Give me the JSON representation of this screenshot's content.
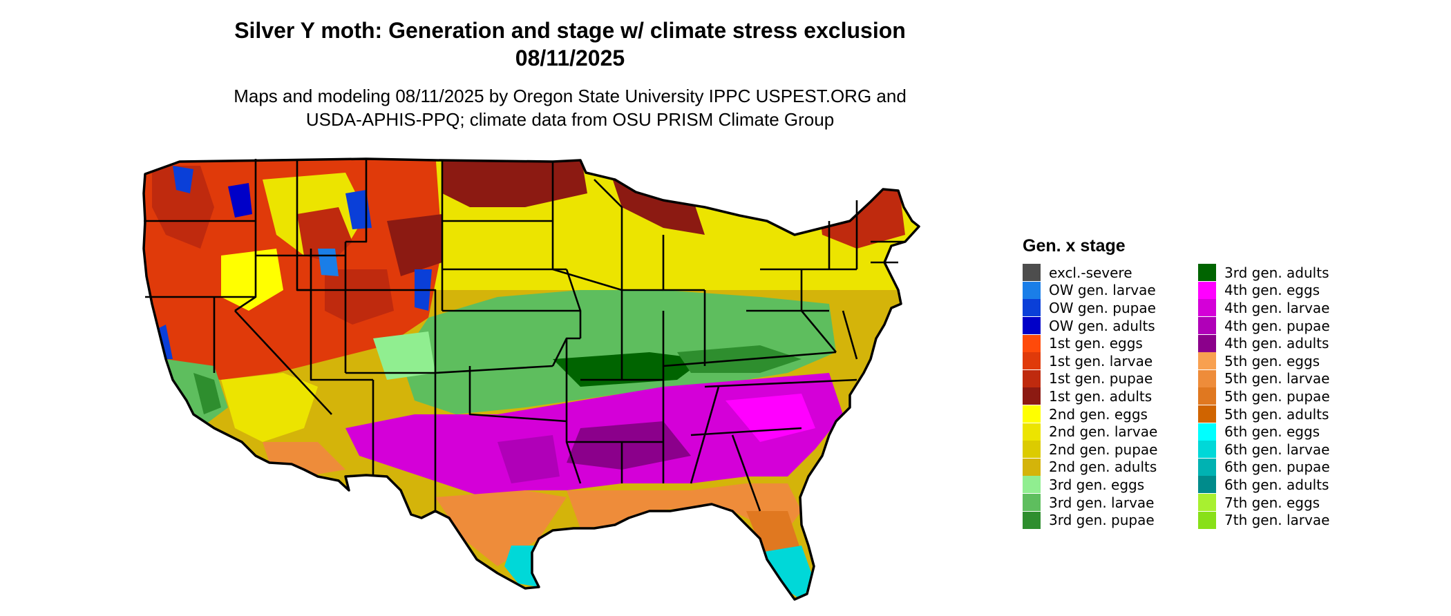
{
  "title": {
    "line1": "Silver Y moth: Generation and stage w/ climate stress exclusion",
    "line2": "08/11/2025"
  },
  "subtitle": {
    "line1": "Maps and modeling 08/11/2025 by Oregon State University IPPC USPEST.ORG and",
    "line2": "USDA-APHIS-PPQ; climate data from OSU PRISM Climate Group"
  },
  "legend": {
    "title": "Gen. x stage",
    "items": [
      {
        "label": "excl.-severe",
        "color": "#4d4d4d"
      },
      {
        "label": "OW gen. larvae",
        "color": "#1a7ee8"
      },
      {
        "label": "OW gen. pupae",
        "color": "#0a3fd8"
      },
      {
        "label": "OW gen. adults",
        "color": "#0000c8"
      },
      {
        "label": "1st gen. eggs",
        "color": "#ff4a0a"
      },
      {
        "label": "1st gen. larvae",
        "color": "#e03a0a"
      },
      {
        "label": "1st gen. pupae",
        "color": "#bf2a0e"
      },
      {
        "label": "1st gen. adults",
        "color": "#8c1a12"
      },
      {
        "label": "2nd gen. eggs",
        "color": "#ffff00"
      },
      {
        "label": "2nd gen. larvae",
        "color": "#ece400"
      },
      {
        "label": "2nd gen. pupae",
        "color": "#dccb00"
      },
      {
        "label": "2nd gen. adults",
        "color": "#d4b40a"
      },
      {
        "label": "3rd gen. eggs",
        "color": "#90ee90"
      },
      {
        "label": "3rd gen. larvae",
        "color": "#5ebe5e"
      },
      {
        "label": "3rd gen. pupae",
        "color": "#2e8e2e"
      },
      {
        "label": "3rd gen. adults",
        "color": "#006400"
      },
      {
        "label": "4th gen. eggs",
        "color": "#ff00ff"
      },
      {
        "label": "4th gen. larvae",
        "color": "#d400d8"
      },
      {
        "label": "4th gen. pupae",
        "color": "#b000b8"
      },
      {
        "label": "4th gen. adults",
        "color": "#8b008b"
      },
      {
        "label": "5th gen. eggs",
        "color": "#f8a050"
      },
      {
        "label": "5th gen. larvae",
        "color": "#ee8c3a"
      },
      {
        "label": "5th gen. pupae",
        "color": "#e07820"
      },
      {
        "label": "5th gen. adults",
        "color": "#d06400"
      },
      {
        "label": "6th gen. eggs",
        "color": "#00ffff"
      },
      {
        "label": "6th gen. larvae",
        "color": "#00d8d8"
      },
      {
        "label": "6th gen. pupae",
        "color": "#00b2b2"
      },
      {
        "label": "6th gen. adults",
        "color": "#008b8b"
      },
      {
        "label": "7th gen. eggs",
        "color": "#a8f030"
      },
      {
        "label": "7th gen. larvae",
        "color": "#88e018"
      }
    ]
  }
}
